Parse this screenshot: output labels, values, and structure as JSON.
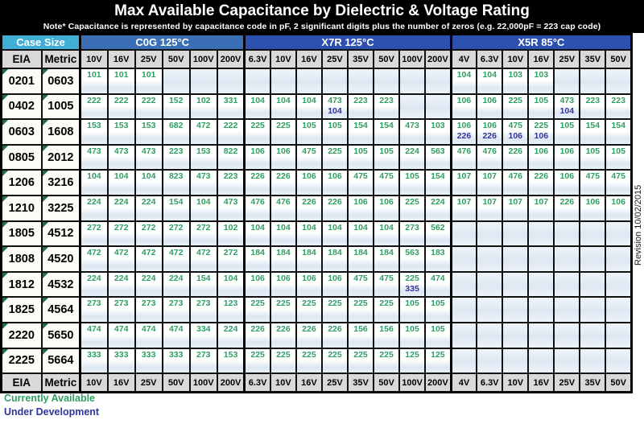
{
  "title": "Max Available Capacitance by Dielectric & Voltage Rating",
  "note": "Note* Capacitance is represented by capacitance code in pF, 2 significant digits plus the number of zeros (e.g.  22,000pF  =  223 cap code)",
  "revision": "Revision 10/02/2015",
  "legend": {
    "available": "Currently Available",
    "development": "Under Development"
  },
  "colors": {
    "available_green": "#2f9e62",
    "development_blue": "#31339b",
    "case_size_header": "#41aed6",
    "c0g_header": "#3a6fb5",
    "x7r_header": "#2c50ae",
    "x5r_header": "#2c50ae",
    "voltage_header_gray": "#d9d9d9"
  },
  "header": {
    "case_size": "Case Size",
    "eia": "EIA",
    "metric": "Metric",
    "sections": [
      {
        "key": "c0g",
        "label": "C0G 125°C",
        "voltages": [
          "10V",
          "16V",
          "25V",
          "50V",
          "100V",
          "200V"
        ]
      },
      {
        "key": "x7r",
        "label": "X7R 125°C",
        "voltages": [
          "6.3V",
          "10V",
          "16V",
          "25V",
          "35V",
          "50V",
          "100V",
          "200V"
        ]
      },
      {
        "key": "x5r",
        "label": "X5R 85°C",
        "voltages": [
          "4V",
          "6.3V",
          "10V",
          "16V",
          "25V",
          "35V",
          "50V"
        ]
      }
    ]
  },
  "rows": [
    {
      "eia": "0201",
      "metric": "0603",
      "c0g": [
        "101",
        "101",
        "101",
        "",
        "",
        ""
      ],
      "x7r": [
        "",
        "",
        "",
        "",
        "",
        "",
        "",
        ""
      ],
      "x5r": [
        "104",
        "104",
        "103",
        "103",
        "",
        "",
        ""
      ]
    },
    {
      "eia": "0402",
      "metric": "1005",
      "c0g": [
        "222",
        "222",
        "222",
        "152",
        "102",
        "331"
      ],
      "x7r": [
        "104",
        "104",
        "104",
        "473/104",
        "223",
        "223",
        "",
        ""
      ],
      "x5r": [
        "106",
        "106",
        "225",
        "105",
        "473/104",
        "223",
        "223"
      ]
    },
    {
      "eia": "0603",
      "metric": "1608",
      "c0g": [
        "153",
        "153",
        "153",
        "682",
        "472",
        "222"
      ],
      "x7r": [
        "225",
        "225",
        "105",
        "105",
        "154",
        "154",
        "473",
        "103"
      ],
      "x5r": [
        "106/226",
        "106/226",
        "475/106",
        "225/106",
        "105",
        "154",
        "154"
      ]
    },
    {
      "eia": "0805",
      "metric": "2012",
      "c0g": [
        "473",
        "473",
        "473",
        "223",
        "153",
        "822"
      ],
      "x7r": [
        "106",
        "106",
        "475",
        "225",
        "105",
        "105",
        "224",
        "563"
      ],
      "x5r": [
        "476",
        "476",
        "226",
        "106",
        "106",
        "105",
        "105"
      ]
    },
    {
      "eia": "1206",
      "metric": "3216",
      "c0g": [
        "104",
        "104",
        "104",
        "823",
        "473",
        "223"
      ],
      "x7r": [
        "226",
        "226",
        "106",
        "106",
        "475",
        "475",
        "105",
        "154"
      ],
      "x5r": [
        "107",
        "107",
        "476",
        "226",
        "106",
        "475",
        "475"
      ]
    },
    {
      "eia": "1210",
      "metric": "3225",
      "c0g": [
        "224",
        "224",
        "224",
        "154",
        "104",
        "473"
      ],
      "x7r": [
        "476",
        "476",
        "226",
        "226",
        "106",
        "106",
        "225",
        "224"
      ],
      "x5r": [
        "107",
        "107",
        "107",
        "107",
        "226",
        "106",
        "106"
      ]
    },
    {
      "eia": "1805",
      "metric": "4512",
      "c0g": [
        "272",
        "272",
        "272",
        "272",
        "272",
        "102"
      ],
      "x7r": [
        "104",
        "104",
        "104",
        "104",
        "104",
        "104",
        "273",
        "562"
      ],
      "x5r": [
        "",
        "",
        "",
        "",
        "",
        "",
        ""
      ]
    },
    {
      "eia": "1808",
      "metric": "4520",
      "c0g": [
        "472",
        "472",
        "472",
        "472",
        "472",
        "272"
      ],
      "x7r": [
        "184",
        "184",
        "184",
        "184",
        "184",
        "184",
        "563",
        "183"
      ],
      "x5r": [
        "",
        "",
        "",
        "",
        "",
        "",
        ""
      ]
    },
    {
      "eia": "1812",
      "metric": "4532",
      "c0g": [
        "224",
        "224",
        "224",
        "224",
        "154",
        "104"
      ],
      "x7r": [
        "106",
        "106",
        "106",
        "106",
        "475",
        "475",
        "225/335",
        "474"
      ],
      "x5r": [
        "",
        "",
        "",
        "",
        "",
        "",
        ""
      ]
    },
    {
      "eia": "1825",
      "metric": "4564",
      "c0g": [
        "273",
        "273",
        "273",
        "273",
        "273",
        "123"
      ],
      "x7r": [
        "225",
        "225",
        "225",
        "225",
        "225",
        "225",
        "105",
        "105"
      ],
      "x5r": [
        "",
        "",
        "",
        "",
        "",
        "",
        ""
      ]
    },
    {
      "eia": "2220",
      "metric": "5650",
      "c0g": [
        "474",
        "474",
        "474",
        "474",
        "334",
        "224"
      ],
      "x7r": [
        "226",
        "226",
        "226",
        "226",
        "156",
        "156",
        "105",
        "105"
      ],
      "x5r": [
        "",
        "",
        "",
        "",
        "",
        "",
        ""
      ]
    },
    {
      "eia": "2225",
      "metric": "5664",
      "c0g": [
        "333",
        "333",
        "333",
        "333",
        "273",
        "153"
      ],
      "x7r": [
        "225",
        "225",
        "225",
        "225",
        "225",
        "225",
        "125",
        "125"
      ],
      "x5r": [
        "",
        "",
        "",
        "",
        "",
        "",
        ""
      ]
    }
  ]
}
